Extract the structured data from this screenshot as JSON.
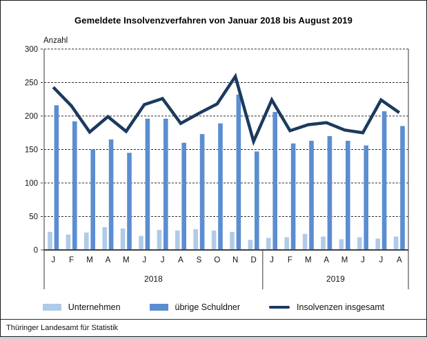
{
  "window": {
    "source": "Thüringer Landesamt für Statistik"
  },
  "chart_data": {
    "type": "bar",
    "subtype": "clustered bars with total line overlay",
    "title": "Gemeldete Insolvenzverfahren von Januar 2018 bis August 2019",
    "ylabel": "Anzahl",
    "xlabel": "",
    "ylim": [
      0,
      300
    ],
    "ytick_step": 50,
    "grid": "horizontal dashed",
    "legend_position": "bottom",
    "categories": [
      "J",
      "F",
      "M",
      "A",
      "M",
      "J",
      "J",
      "A",
      "S",
      "O",
      "N",
      "D",
      "J",
      "F",
      "M",
      "A",
      "M",
      "J",
      "J",
      "A"
    ],
    "year_groups": [
      {
        "label": "2018",
        "from": 0,
        "to": 11
      },
      {
        "label": "2019",
        "from": 12,
        "to": 19
      }
    ],
    "series": [
      {
        "name": "Unternehmen",
        "type": "bar",
        "color": "#b0cbe8",
        "values": [
          27,
          23,
          26,
          34,
          32,
          21,
          30,
          29,
          31,
          29,
          27,
          15,
          18,
          19,
          24,
          20,
          16,
          19,
          17,
          20
        ]
      },
      {
        "name": "übrige Schuldner",
        "type": "bar",
        "color": "#5b8dd1",
        "values": [
          216,
          192,
          150,
          165,
          145,
          196,
          196,
          160,
          173,
          189,
          232,
          147,
          206,
          159,
          163,
          170,
          163,
          156,
          207,
          185
        ]
      },
      {
        "name": "Insolvenzen insgesamt",
        "type": "line",
        "color": "#1b3a5e",
        "values": [
          243,
          215,
          176,
          199,
          177,
          217,
          226,
          189,
          204,
          218,
          259,
          162,
          224,
          178,
          187,
          190,
          179,
          175,
          224,
          205
        ]
      }
    ],
    "axis_color": "#555555",
    "gridline_color": "#2b2b2b"
  }
}
